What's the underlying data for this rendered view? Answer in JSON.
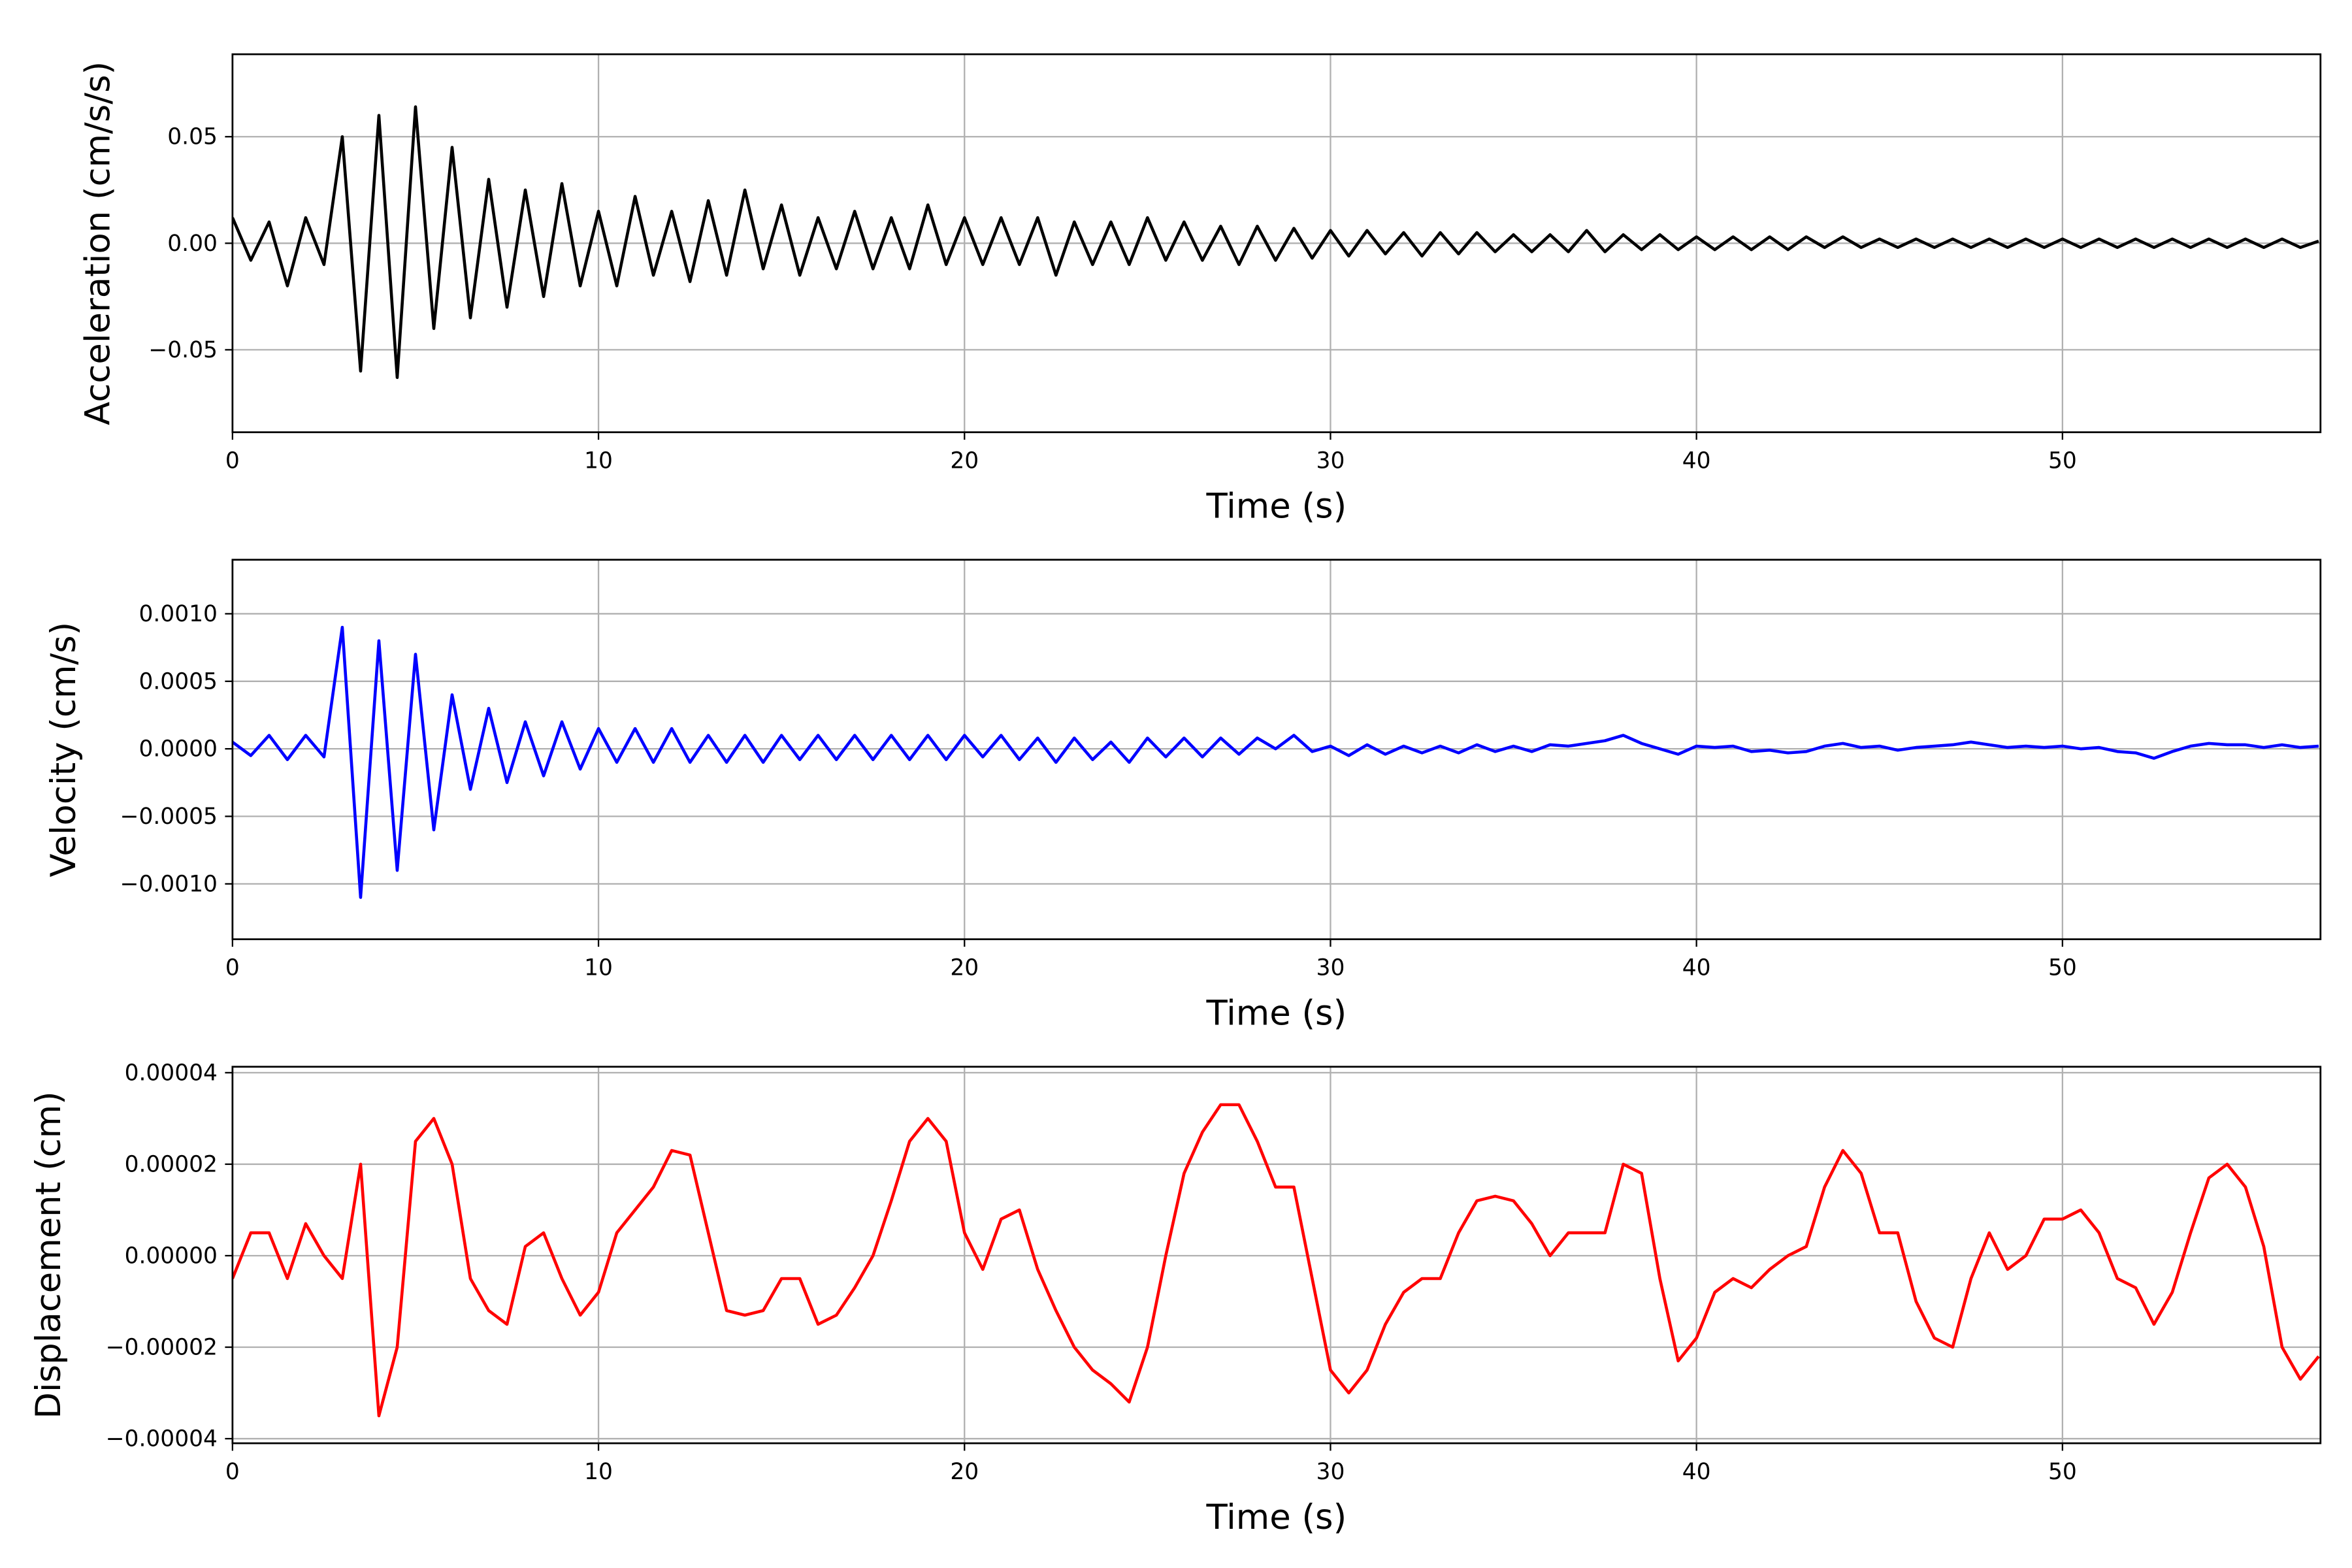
{
  "chart_data": [
    {
      "type": "line",
      "ylabel": "Acceleration (cm/s/s)",
      "xlabel": "Time (s)",
      "grid": true,
      "xlim": [
        0,
        57.05
      ],
      "xticks": [
        0,
        10,
        20,
        30,
        40,
        50
      ],
      "ylim": [
        -0.0887,
        0.0887
      ],
      "yticks": [
        {
          "value": -0.05,
          "label": "−0.05"
        },
        {
          "value": 0,
          "label": "0.00"
        },
        {
          "value": 0.05,
          "label": "0.05"
        }
      ],
      "x": [
        0,
        0.5,
        1,
        1.5,
        2,
        2.5,
        3,
        3.5,
        4,
        4.5,
        5,
        5.5,
        6,
        6.5,
        7,
        7.5,
        8,
        8.5,
        9,
        9.5,
        10,
        10.5,
        11,
        11.5,
        12,
        12.5,
        13,
        13.5,
        14,
        14.5,
        15,
        15.5,
        16,
        16.5,
        17,
        17.5,
        18,
        18.5,
        19,
        19.5,
        20,
        20.5,
        21,
        21.5,
        22,
        22.5,
        23,
        23.5,
        24,
        24.5,
        25,
        25.5,
        26,
        26.5,
        27,
        27.5,
        28,
        28.5,
        29,
        29.5,
        30,
        30.5,
        31,
        31.5,
        32,
        32.5,
        33,
        33.5,
        34,
        34.5,
        35,
        35.5,
        36,
        36.5,
        37,
        37.5,
        38,
        38.5,
        39,
        39.5,
        40,
        40.5,
        41,
        41.5,
        42,
        42.5,
        43,
        43.5,
        44,
        44.5,
        45,
        45.5,
        46,
        46.5,
        47,
        47.5,
        48,
        48.5,
        49,
        49.5,
        50,
        50.5,
        51,
        51.5,
        52,
        52.5,
        53,
        53.5,
        54,
        54.5,
        55,
        55.5,
        56,
        56.5,
        57
      ],
      "series": [
        {
          "color": "#000000",
          "values": [
            0.012,
            -0.008,
            0.01,
            -0.02,
            0.012,
            -0.01,
            0.05,
            -0.06,
            0.06,
            -0.063,
            0.064,
            -0.04,
            0.045,
            -0.035,
            0.03,
            -0.03,
            0.025,
            -0.025,
            0.028,
            -0.02,
            0.015,
            -0.02,
            0.022,
            -0.015,
            0.015,
            -0.018,
            0.02,
            -0.015,
            0.025,
            -0.012,
            0.018,
            -0.015,
            0.012,
            -0.012,
            0.015,
            -0.012,
            0.012,
            -0.012,
            0.018,
            -0.01,
            0.012,
            -0.01,
            0.012,
            -0.01,
            0.012,
            -0.015,
            0.01,
            -0.01,
            0.01,
            -0.01,
            0.012,
            -0.008,
            0.01,
            -0.008,
            0.008,
            -0.01,
            0.008,
            -0.008,
            0.007,
            -0.007,
            0.006,
            -0.006,
            0.006,
            -0.005,
            0.005,
            -0.006,
            0.005,
            -0.005,
            0.005,
            -0.004,
            0.004,
            -0.004,
            0.004,
            -0.004,
            0.006,
            -0.004,
            0.004,
            -0.003,
            0.004,
            -0.003,
            0.003,
            -0.003,
            0.003,
            -0.003,
            0.003,
            -0.003,
            0.003,
            -0.002,
            0.003,
            -0.002,
            0.002,
            -0.002,
            0.002,
            -0.002,
            0.002,
            -0.002,
            0.002,
            -0.002,
            0.002,
            -0.002,
            0.002,
            -0.002,
            0.002,
            -0.002,
            0.002,
            -0.002,
            0.002,
            -0.002,
            0.002,
            -0.002,
            0.002,
            -0.002,
            0.002,
            -0.002,
            0.001
          ]
        }
      ]
    },
    {
      "type": "line",
      "ylabel": "Velocity (cm/s)",
      "xlabel": "Time (s)",
      "grid": true,
      "xlim": [
        0,
        57.05
      ],
      "xticks": [
        0,
        10,
        20,
        30,
        40,
        50
      ],
      "ylim": [
        -0.00141,
        0.0014
      ],
      "yticks": [
        {
          "value": -0.001,
          "label": "−0.0010"
        },
        {
          "value": -0.0005,
          "label": "−0.0005"
        },
        {
          "value": 0,
          "label": "0.0000"
        },
        {
          "value": 0.0005,
          "label": "0.0005"
        },
        {
          "value": 0.001,
          "label": "0.0010"
        }
      ],
      "x": [
        0,
        0.5,
        1,
        1.5,
        2,
        2.5,
        3,
        3.5,
        4,
        4.5,
        5,
        5.5,
        6,
        6.5,
        7,
        7.5,
        8,
        8.5,
        9,
        9.5,
        10,
        10.5,
        11,
        11.5,
        12,
        12.5,
        13,
        13.5,
        14,
        14.5,
        15,
        15.5,
        16,
        16.5,
        17,
        17.5,
        18,
        18.5,
        19,
        19.5,
        20,
        20.5,
        21,
        21.5,
        22,
        22.5,
        23,
        23.5,
        24,
        24.5,
        25,
        25.5,
        26,
        26.5,
        27,
        27.5,
        28,
        28.5,
        29,
        29.5,
        30,
        30.5,
        31,
        31.5,
        32,
        32.5,
        33,
        33.5,
        34,
        34.5,
        35,
        35.5,
        36,
        36.5,
        37,
        37.5,
        38,
        38.5,
        39,
        39.5,
        40,
        40.5,
        41,
        41.5,
        42,
        42.5,
        43,
        43.5,
        44,
        44.5,
        45,
        45.5,
        46,
        46.5,
        47,
        47.5,
        48,
        48.5,
        49,
        49.5,
        50,
        50.5,
        51,
        51.5,
        52,
        52.5,
        53,
        53.5,
        54,
        54.5,
        55,
        55.5,
        56,
        56.5,
        57
      ],
      "series": [
        {
          "color": "#0000ff",
          "values": [
            5e-05,
            -5e-05,
            0.0001,
            -8e-05,
            0.0001,
            -6e-05,
            0.0009,
            -0.0011,
            0.0008,
            -0.0009,
            0.0007,
            -0.0006,
            0.0004,
            -0.0003,
            0.0003,
            -0.00025,
            0.0002,
            -0.0002,
            0.0002,
            -0.00015,
            0.00015,
            -0.0001,
            0.00015,
            -0.0001,
            0.00015,
            -0.0001,
            0.0001,
            -0.0001,
            0.0001,
            -0.0001,
            0.0001,
            -8e-05,
            0.0001,
            -8e-05,
            0.0001,
            -8e-05,
            0.0001,
            -8e-05,
            0.0001,
            -8e-05,
            0.0001,
            -6e-05,
            0.0001,
            -8e-05,
            8e-05,
            -0.0001,
            8e-05,
            -8e-05,
            5e-05,
            -0.0001,
            8e-05,
            -6e-05,
            8e-05,
            -6e-05,
            8e-05,
            -4e-05,
            8e-05,
            0,
            0.0001,
            -2e-05,
            2e-05,
            -5e-05,
            3e-05,
            -4e-05,
            2e-05,
            -3e-05,
            2e-05,
            -3e-05,
            3e-05,
            -2e-05,
            2e-05,
            -2e-05,
            3e-05,
            2e-05,
            4e-05,
            6e-05,
            0.0001,
            4e-05,
            0,
            -4e-05,
            2e-05,
            1e-05,
            2e-05,
            -2e-05,
            -1e-05,
            -3e-05,
            -2e-05,
            2e-05,
            4e-05,
            1e-05,
            2e-05,
            -1e-05,
            1e-05,
            2e-05,
            3e-05,
            5e-05,
            3e-05,
            1e-05,
            2e-05,
            1e-05,
            2e-05,
            0,
            1e-05,
            -2e-05,
            -3e-05,
            -7e-05,
            -2e-05,
            2e-05,
            4e-05,
            3e-05,
            3e-05,
            1e-05,
            3e-05,
            1e-05,
            2e-05
          ]
        }
      ]
    },
    {
      "type": "line",
      "ylabel": "Displacement (cm)",
      "xlabel": "Time (s)",
      "grid": true,
      "xlim": [
        0,
        57.05
      ],
      "xticks": [
        0,
        10,
        20,
        30,
        40,
        50
      ],
      "ylim": [
        -4.1e-05,
        4.13e-05
      ],
      "yticks": [
        {
          "value": -4e-05,
          "label": "−0.00004"
        },
        {
          "value": -2e-05,
          "label": "−0.00002"
        },
        {
          "value": 0,
          "label": "0.00000"
        },
        {
          "value": 2e-05,
          "label": "0.00002"
        },
        {
          "value": 4e-05,
          "label": "0.00004"
        }
      ],
      "x": [
        0,
        0.5,
        1,
        1.5,
        2,
        2.5,
        3,
        3.5,
        4,
        4.5,
        5,
        5.5,
        6,
        6.5,
        7,
        7.5,
        8,
        8.5,
        9,
        9.5,
        10,
        10.5,
        11,
        11.5,
        12,
        12.5,
        13,
        13.5,
        14,
        14.5,
        15,
        15.5,
        16,
        16.5,
        17,
        17.5,
        18,
        18.5,
        19,
        19.5,
        20,
        20.5,
        21,
        21.5,
        22,
        22.5,
        23,
        23.5,
        24,
        24.5,
        25,
        25.5,
        26,
        26.5,
        27,
        27.5,
        28,
        28.5,
        29,
        29.5,
        30,
        30.5,
        31,
        31.5,
        32,
        32.5,
        33,
        33.5,
        34,
        34.5,
        35,
        35.5,
        36,
        36.5,
        37,
        37.5,
        38,
        38.5,
        39,
        39.5,
        40,
        40.5,
        41,
        41.5,
        42,
        42.5,
        43,
        43.5,
        44,
        44.5,
        45,
        45.5,
        46,
        46.5,
        47,
        47.5,
        48,
        48.5,
        49,
        49.5,
        50,
        50.5,
        51,
        51.5,
        52,
        52.5,
        53,
        53.5,
        54,
        54.5,
        55,
        55.5,
        56,
        56.5,
        57
      ],
      "series": [
        {
          "color": "#ff0000",
          "values": [
            -5e-06,
            5e-06,
            5e-06,
            -5e-06,
            7e-06,
            0,
            -5e-06,
            2e-05,
            -3.5e-05,
            -2e-05,
            2.5e-05,
            3e-05,
            2e-05,
            -5e-06,
            -1.2e-05,
            -1.5e-05,
            2e-06,
            5e-06,
            -5e-06,
            -1.3e-05,
            -8e-06,
            5e-06,
            1e-05,
            1.5e-05,
            2.3e-05,
            2.2e-05,
            5e-06,
            -1.2e-05,
            -1.3e-05,
            -1.2e-05,
            -5e-06,
            -5e-06,
            -1.5e-05,
            -1.3e-05,
            -7e-06,
            0,
            1.2e-05,
            2.5e-05,
            3e-05,
            2.5e-05,
            5e-06,
            -3e-06,
            8e-06,
            1e-05,
            -3e-06,
            -1.2e-05,
            -2e-05,
            -2.5e-05,
            -2.8e-05,
            -3.2e-05,
            -2e-05,
            0,
            1.8e-05,
            2.7e-05,
            3.3e-05,
            3.3e-05,
            2.5e-05,
            1.5e-05,
            1.5e-05,
            -5e-06,
            -2.5e-05,
            -3e-05,
            -2.5e-05,
            -1.5e-05,
            -8e-06,
            -5e-06,
            -5e-06,
            5e-06,
            1.2e-05,
            1.3e-05,
            1.2e-05,
            7e-06,
            0,
            5e-06,
            5e-06,
            5e-06,
            2e-05,
            1.8e-05,
            -5e-06,
            -2.3e-05,
            -1.8e-05,
            -8e-06,
            -5e-06,
            -7e-06,
            -3e-06,
            0,
            2e-06,
            1.5e-05,
            2.3e-05,
            1.8e-05,
            5e-06,
            5e-06,
            -1e-05,
            -1.8e-05,
            -2e-05,
            -5e-06,
            5e-06,
            -3e-06,
            0,
            8e-06,
            8e-06,
            1e-05,
            5e-06,
            -5e-06,
            -7e-06,
            -1.5e-05,
            -8e-06,
            5e-06,
            1.7e-05,
            2e-05,
            1.5e-05,
            2e-06,
            -2e-05,
            -2.7e-05,
            -2.2e-05
          ]
        }
      ]
    }
  ]
}
